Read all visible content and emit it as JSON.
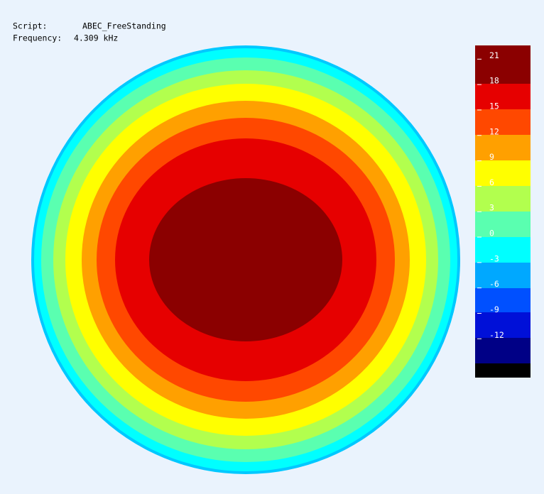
{
  "chart_data": {
    "type": "contour",
    "script_label": "Script:",
    "script_name": "ABEC_FreeStanding",
    "frequency_label": "Frequency:",
    "frequency_value": "4.309 kHz",
    "colorbar": {
      "ylim": [
        -17,
        22.2
      ],
      "yticks": [
        21,
        18,
        15,
        12,
        9,
        6,
        3,
        0,
        -3,
        -6,
        -9,
        -12
      ],
      "colors": [
        "#8b0000",
        "#e60000",
        "#ff4800",
        "#ffa000",
        "#ffff00",
        "#b2ff4e",
        "#5affb0",
        "#00ffff",
        "#00a8ff",
        "#0050ff",
        "#0010d8",
        "#000086",
        "#000000"
      ]
    }
  }
}
